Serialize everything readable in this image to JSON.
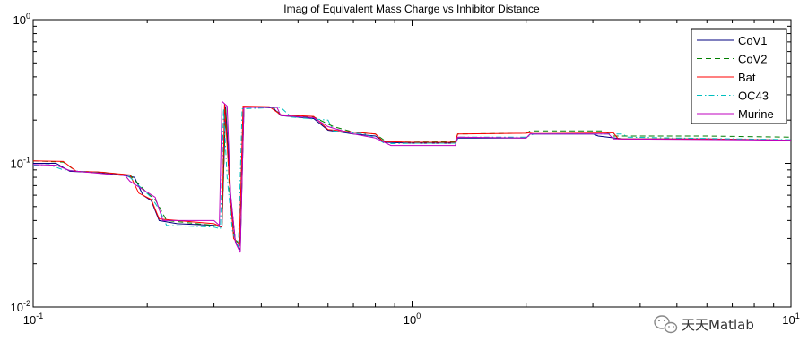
{
  "chart_data": {
    "type": "line",
    "title": "Imag of Equivalent Mass Charge vs Inhibitor Distance",
    "xlabel": "",
    "ylabel": "",
    "xscale": "log",
    "yscale": "log",
    "xlim": [
      0.1,
      10
    ],
    "ylim": [
      0.01,
      1
    ],
    "x_ticks": [
      {
        "base": "10",
        "exp": "-1",
        "value": 0.1
      },
      {
        "base": "10",
        "exp": "0",
        "value": 1
      },
      {
        "base": "10",
        "exp": "1",
        "value": 10
      }
    ],
    "y_ticks": [
      {
        "base": "10",
        "exp": "0",
        "value": 1
      },
      {
        "base": "10",
        "exp": "-1",
        "value": 0.1
      },
      {
        "base": "10",
        "exp": "-2",
        "value": 0.01
      }
    ],
    "grid": false,
    "legend_position": "top-right",
    "series": [
      {
        "name": "CoV1",
        "color": "#00007f",
        "dash": "solid",
        "points": [
          [
            0.1,
            0.1
          ],
          [
            0.115,
            0.1
          ],
          [
            0.125,
            0.088
          ],
          [
            0.15,
            0.086
          ],
          [
            0.17,
            0.083
          ],
          [
            0.185,
            0.08
          ],
          [
            0.195,
            0.06
          ],
          [
            0.205,
            0.055
          ],
          [
            0.215,
            0.04
          ],
          [
            0.24,
            0.038
          ],
          [
            0.3,
            0.037
          ],
          [
            0.315,
            0.036
          ],
          [
            0.322,
            0.25
          ],
          [
            0.332,
            0.06
          ],
          [
            0.342,
            0.028
          ],
          [
            0.352,
            0.025
          ],
          [
            0.36,
            0.245
          ],
          [
            0.4,
            0.245
          ],
          [
            0.43,
            0.243
          ],
          [
            0.45,
            0.215
          ],
          [
            0.55,
            0.205
          ],
          [
            0.6,
            0.17
          ],
          [
            0.7,
            0.16
          ],
          [
            0.8,
            0.155
          ],
          [
            0.85,
            0.14
          ],
          [
            1.0,
            0.138
          ],
          [
            1.3,
            0.138
          ],
          [
            1.32,
            0.15
          ],
          [
            2.0,
            0.15
          ],
          [
            2.05,
            0.16
          ],
          [
            3.0,
            0.16
          ],
          [
            3.1,
            0.155
          ],
          [
            3.6,
            0.148
          ],
          [
            6.0,
            0.148
          ],
          [
            10.0,
            0.145
          ]
        ]
      },
      {
        "name": "CoV2",
        "color": "#007f00",
        "dash": "dash",
        "points": [
          [
            0.1,
            0.104
          ],
          [
            0.12,
            0.102
          ],
          [
            0.13,
            0.088
          ],
          [
            0.15,
            0.087
          ],
          [
            0.18,
            0.083
          ],
          [
            0.2,
            0.062
          ],
          [
            0.21,
            0.056
          ],
          [
            0.225,
            0.04
          ],
          [
            0.3,
            0.037
          ],
          [
            0.315,
            0.036
          ],
          [
            0.322,
            0.24
          ],
          [
            0.33,
            0.06
          ],
          [
            0.34,
            0.03
          ],
          [
            0.352,
            0.027
          ],
          [
            0.36,
            0.245
          ],
          [
            0.43,
            0.245
          ],
          [
            0.45,
            0.218
          ],
          [
            0.55,
            0.21
          ],
          [
            0.62,
            0.18
          ],
          [
            0.7,
            0.165
          ],
          [
            0.8,
            0.16
          ],
          [
            0.85,
            0.143
          ],
          [
            1.3,
            0.142
          ],
          [
            1.32,
            0.16
          ],
          [
            2.0,
            0.162
          ],
          [
            2.05,
            0.168
          ],
          [
            3.2,
            0.168
          ],
          [
            3.4,
            0.155
          ],
          [
            6.0,
            0.155
          ],
          [
            10.0,
            0.152
          ]
        ]
      },
      {
        "name": "Bat",
        "color": "#ff0000",
        "dash": "solid",
        "points": [
          [
            0.1,
            0.104
          ],
          [
            0.12,
            0.103
          ],
          [
            0.13,
            0.088
          ],
          [
            0.15,
            0.087
          ],
          [
            0.18,
            0.083
          ],
          [
            0.19,
            0.062
          ],
          [
            0.205,
            0.056
          ],
          [
            0.215,
            0.041
          ],
          [
            0.3,
            0.038
          ],
          [
            0.315,
            0.036
          ],
          [
            0.32,
            0.26
          ],
          [
            0.33,
            0.07
          ],
          [
            0.338,
            0.03
          ],
          [
            0.35,
            0.027
          ],
          [
            0.358,
            0.25
          ],
          [
            0.42,
            0.248
          ],
          [
            0.45,
            0.218
          ],
          [
            0.55,
            0.212
          ],
          [
            0.6,
            0.172
          ],
          [
            0.7,
            0.165
          ],
          [
            0.8,
            0.16
          ],
          [
            0.84,
            0.142
          ],
          [
            1.0,
            0.14
          ],
          [
            1.3,
            0.14
          ],
          [
            1.32,
            0.16
          ],
          [
            2.0,
            0.162
          ],
          [
            2.1,
            0.165
          ],
          [
            3.4,
            0.163
          ],
          [
            3.5,
            0.148
          ],
          [
            6.0,
            0.148
          ],
          [
            10.0,
            0.145
          ]
        ]
      },
      {
        "name": "OC43",
        "color": "#00bfbf",
        "dash": "dashdot",
        "points": [
          [
            0.1,
            0.097
          ],
          [
            0.11,
            0.098
          ],
          [
            0.12,
            0.09
          ],
          [
            0.14,
            0.087
          ],
          [
            0.175,
            0.082
          ],
          [
            0.18,
            0.08
          ],
          [
            0.205,
            0.058
          ],
          [
            0.215,
            0.048
          ],
          [
            0.225,
            0.037
          ],
          [
            0.3,
            0.036
          ],
          [
            0.312,
            0.035
          ],
          [
            0.318,
            0.24
          ],
          [
            0.325,
            0.08
          ],
          [
            0.336,
            0.033
          ],
          [
            0.348,
            0.026
          ],
          [
            0.356,
            0.24
          ],
          [
            0.45,
            0.245
          ],
          [
            0.48,
            0.21
          ],
          [
            0.6,
            0.2
          ],
          [
            0.62,
            0.168
          ],
          [
            0.75,
            0.16
          ],
          [
            0.8,
            0.15
          ],
          [
            0.85,
            0.137
          ],
          [
            1.0,
            0.138
          ],
          [
            1.3,
            0.138
          ],
          [
            1.33,
            0.152
          ],
          [
            2.0,
            0.152
          ],
          [
            2.1,
            0.16
          ],
          [
            3.6,
            0.16
          ],
          [
            3.7,
            0.152
          ],
          [
            5.0,
            0.15
          ],
          [
            10.0,
            0.146
          ]
        ]
      },
      {
        "name": "Murine",
        "color": "#bf00bf",
        "dash": "solid",
        "points": [
          [
            0.1,
            0.098
          ],
          [
            0.115,
            0.097
          ],
          [
            0.125,
            0.089
          ],
          [
            0.15,
            0.085
          ],
          [
            0.175,
            0.082
          ],
          [
            0.18,
            0.075
          ],
          [
            0.21,
            0.058
          ],
          [
            0.22,
            0.04
          ],
          [
            0.3,
            0.04
          ],
          [
            0.31,
            0.037
          ],
          [
            0.315,
            0.27
          ],
          [
            0.325,
            0.25
          ],
          [
            0.332,
            0.06
          ],
          [
            0.342,
            0.028
          ],
          [
            0.352,
            0.024
          ],
          [
            0.36,
            0.245
          ],
          [
            0.44,
            0.245
          ],
          [
            0.45,
            0.215
          ],
          [
            0.55,
            0.208
          ],
          [
            0.6,
            0.18
          ],
          [
            0.7,
            0.16
          ],
          [
            0.8,
            0.15
          ],
          [
            0.88,
            0.133
          ],
          [
            1.0,
            0.133
          ],
          [
            1.3,
            0.133
          ],
          [
            1.32,
            0.152
          ],
          [
            2.0,
            0.15
          ],
          [
            2.05,
            0.16
          ],
          [
            3.3,
            0.16
          ],
          [
            3.4,
            0.148
          ],
          [
            10.0,
            0.145
          ]
        ]
      }
    ]
  },
  "watermark": {
    "text": "天天Matlab"
  }
}
